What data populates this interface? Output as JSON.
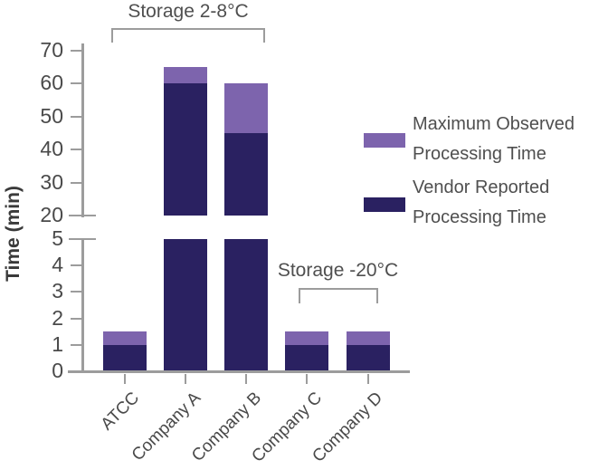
{
  "chart_data": {
    "type": "bar",
    "stacked": true,
    "categories": [
      "ATCC",
      "Company A",
      "Company B",
      "Company C",
      "Company D"
    ],
    "series": [
      {
        "name": "Vendor Reported Processing Time",
        "color": "#2a2161",
        "values": [
          1,
          60,
          45,
          1,
          1
        ]
      },
      {
        "name": "Maximum Observed Processing Time",
        "color": "#7d64ad",
        "values": [
          1.5,
          65,
          60,
          1.5,
          1.5
        ]
      }
    ],
    "axis": {
      "y": {
        "label": "Time (min)",
        "break": true,
        "lower": {
          "range": [
            0,
            5
          ],
          "ticks": [
            5,
            4,
            3,
            2,
            1,
            0
          ]
        },
        "upper": {
          "range": [
            20,
            70
          ],
          "ticks": [
            70,
            60,
            50,
            40,
            30,
            20
          ]
        }
      },
      "x": {
        "label": ""
      }
    },
    "annotations": [
      {
        "label": "Storage 2-8°C",
        "span": [
          "ATCC",
          "Company B"
        ]
      },
      {
        "label": "Storage -20°C",
        "span": [
          "Company C",
          "Company D"
        ]
      }
    ],
    "legend": {
      "position": "right",
      "entries": [
        {
          "label": "Maximum Observed Processing Time",
          "color": "#7d64ad"
        },
        {
          "label": "Vendor Reported Processing Time",
          "color": "#2a2161"
        }
      ]
    },
    "grid": false
  },
  "colors": {
    "vendor_reported": "#2a2161",
    "maximum_observed": "#7d64ad",
    "axis_line": "#9c9c9c",
    "text": "#4a4a4a",
    "background": "#ffffff"
  }
}
